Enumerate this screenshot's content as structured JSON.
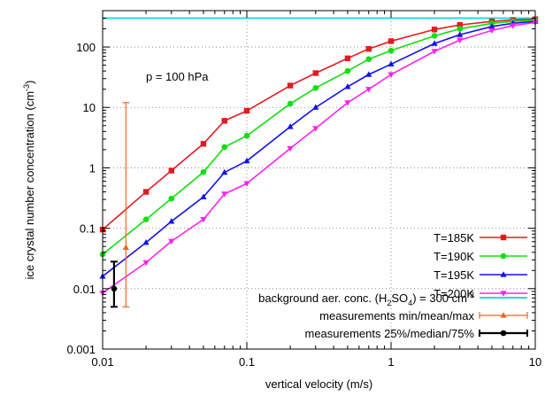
{
  "chart_data": {
    "type": "line",
    "xlabel": "vertical velocity (m/s)",
    "ylabel": "ice crystal number concentration (cm",
    "ylabel_sup": "-3",
    "ylabel_tail": ")",
    "x_scale": "log",
    "y_scale": "log",
    "xlim": [
      0.01,
      10
    ],
    "ylim": [
      0.001,
      400
    ],
    "x_ticks": [
      {
        "value": 0.01,
        "label": "0.01"
      },
      {
        "value": 0.1,
        "label": "0.1"
      },
      {
        "value": 1,
        "label": "1"
      },
      {
        "value": 10,
        "label": "10"
      }
    ],
    "y_ticks": [
      {
        "value": 0.001,
        "label": "0.001"
      },
      {
        "value": 0.01,
        "label": "0.01"
      },
      {
        "value": 0.1,
        "label": "0.1"
      },
      {
        "value": 1,
        "label": "1"
      },
      {
        "value": 10,
        "label": "10"
      },
      {
        "value": 100,
        "label": "100"
      }
    ],
    "grid": "dotted at decades",
    "legend_position": "bottom-right",
    "annotation": "p = 100 hPa",
    "x": [
      0.01,
      0.02,
      0.03,
      0.05,
      0.07,
      0.1,
      0.2,
      0.3,
      0.5,
      0.7,
      1,
      2,
      3,
      5,
      7,
      10
    ],
    "series": [
      {
        "name": "T=185K",
        "color": "#e41a1c",
        "marker": "square",
        "values": [
          0.095,
          0.4,
          0.9,
          2.5,
          6.0,
          8.8,
          23,
          37,
          65,
          93,
          125,
          195,
          232,
          265,
          280,
          288
        ]
      },
      {
        "name": "T=190K",
        "color": "#11dd11",
        "marker": "circle",
        "values": [
          0.037,
          0.14,
          0.31,
          0.85,
          2.2,
          3.4,
          11.5,
          21,
          40,
          63,
          87,
          153,
          200,
          246,
          265,
          278
        ]
      },
      {
        "name": "T=195K",
        "color": "#1111ee",
        "marker": "triangle-up",
        "values": [
          0.016,
          0.058,
          0.13,
          0.33,
          0.84,
          1.3,
          4.8,
          10,
          22,
          35,
          52,
          114,
          160,
          218,
          247,
          265
        ]
      },
      {
        "name": "T=200K",
        "color": "#ff22ee",
        "marker": "triangle-down",
        "values": [
          0.0085,
          0.027,
          0.061,
          0.14,
          0.37,
          0.55,
          2.1,
          4.5,
          12,
          20,
          35,
          85,
          130,
          188,
          226,
          255
        ]
      }
    ],
    "background": {
      "label_pre": "background aer. conc. (H",
      "label_sub1": "2",
      "label_mid": "SO",
      "label_sub2": "4",
      "label_post": ")  = 300 cm",
      "label_sup": "-3",
      "value": 300,
      "color": "#22dddd"
    },
    "measurements_range": {
      "label": "measurements min/mean/max",
      "x": 0.0145,
      "min": 0.005,
      "mean": 0.048,
      "max": 12,
      "color": "#ee6622"
    },
    "measurements_quartiles": {
      "label": "measurements 25%/median/75%",
      "x": 0.012,
      "q25": 0.005,
      "median": 0.01,
      "q75": 0.028,
      "color": "#000000"
    }
  }
}
